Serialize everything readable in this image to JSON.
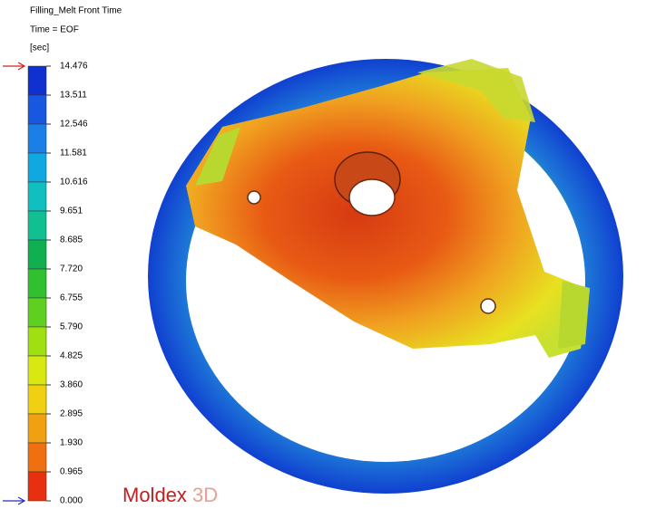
{
  "header": {
    "title": "Filling_Melt Front Time",
    "time": "Time = EOF"
  },
  "legend": {
    "unit": "[sec]",
    "ticks": [
      "14.476",
      "13.511",
      "12.546",
      "11.581",
      "10.616",
      "9.651",
      "8.685",
      "7.720",
      "6.755",
      "5.790",
      "4.825",
      "3.860",
      "2.895",
      "1.930",
      "0.965",
      "0.000"
    ]
  },
  "logo": {
    "name": "Moldex",
    "suffix": "3D"
  }
}
